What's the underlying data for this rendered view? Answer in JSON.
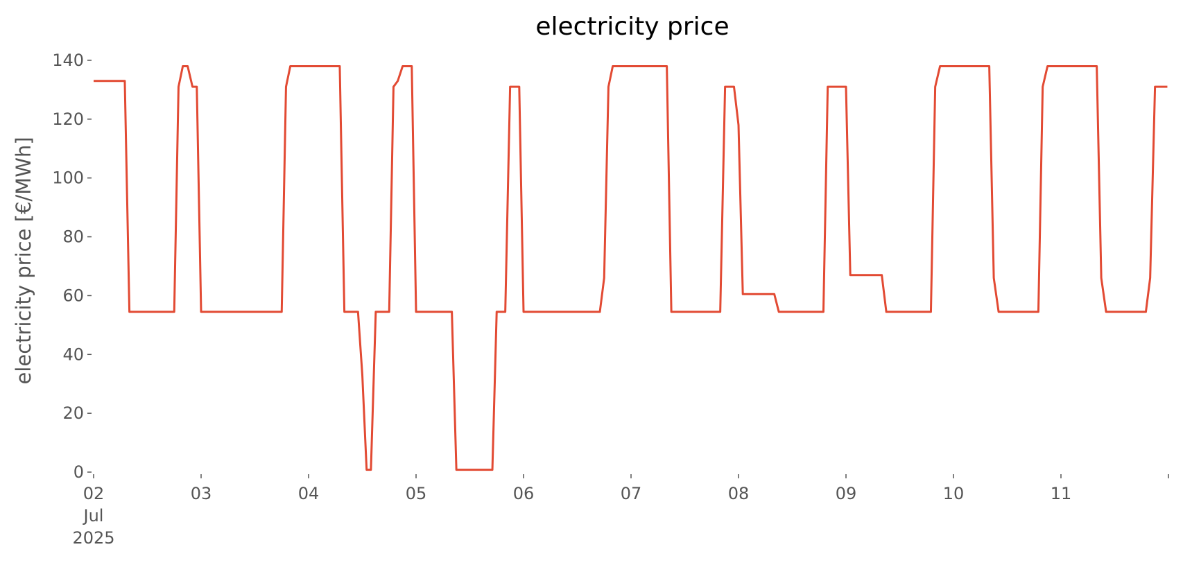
{
  "chart_data": {
    "type": "line",
    "title": "electricity price",
    "ylabel": "electricity price [€/MWh]",
    "x": [
      2.0,
      2.29,
      2.333,
      2.75,
      2.79,
      2.83,
      2.875,
      2.92,
      2.96,
      3.0,
      3.75,
      3.79,
      3.83,
      4.29,
      4.333,
      4.46,
      4.5,
      4.54,
      4.58,
      4.625,
      4.75,
      4.79,
      4.83,
      4.875,
      4.96,
      5.0,
      5.333,
      5.375,
      5.71,
      5.75,
      5.83,
      5.875,
      5.96,
      6.0,
      6.71,
      6.75,
      6.79,
      6.83,
      7.333,
      7.375,
      7.83,
      7.875,
      7.958,
      8.0,
      8.04,
      8.333,
      8.375,
      8.79,
      8.83,
      9.0,
      9.04,
      9.333,
      9.375,
      9.79,
      9.83,
      9.875,
      10.333,
      10.375,
      10.42,
      10.79,
      10.83,
      10.875,
      11.333,
      11.375,
      11.42,
      11.79,
      11.83,
      11.875,
      11.99
    ],
    "series": [
      {
        "name": "electricity price",
        "color": "#e24a33",
        "values": [
          133,
          133,
          54.5,
          54.5,
          131,
          138,
          138,
          131,
          131,
          54.5,
          54.5,
          131,
          138,
          138,
          54.5,
          54.5,
          33,
          0.8,
          0.8,
          54.5,
          54.5,
          131,
          133,
          138,
          138,
          54.5,
          54.5,
          0.8,
          0.8,
          54.5,
          54.5,
          131,
          131,
          54.5,
          54.5,
          66,
          131,
          138,
          138,
          54.5,
          54.5,
          131,
          131,
          118,
          60.5,
          60.5,
          54.5,
          54.5,
          131,
          131,
          67,
          67,
          54.5,
          54.5,
          131,
          138,
          138,
          66,
          54.5,
          54.5,
          131,
          138,
          138,
          66,
          54.5,
          54.5,
          66,
          131,
          131
        ]
      }
    ],
    "xlim": [
      2,
      12
    ],
    "ylim": [
      0,
      140
    ],
    "xticks": [
      {
        "value": 2,
        "label": "02\nJul\n2025"
      },
      {
        "value": 3,
        "label": "03"
      },
      {
        "value": 4,
        "label": "04"
      },
      {
        "value": 5,
        "label": "05"
      },
      {
        "value": 6,
        "label": "06"
      },
      {
        "value": 7,
        "label": "07"
      },
      {
        "value": 8,
        "label": "08"
      },
      {
        "value": 9,
        "label": "09"
      },
      {
        "value": 10,
        "label": "10"
      },
      {
        "value": 11,
        "label": "11"
      },
      {
        "value": 12,
        "label": null
      }
    ],
    "yticks": [
      0,
      20,
      40,
      60,
      80,
      100,
      120,
      140
    ],
    "grid": false
  }
}
